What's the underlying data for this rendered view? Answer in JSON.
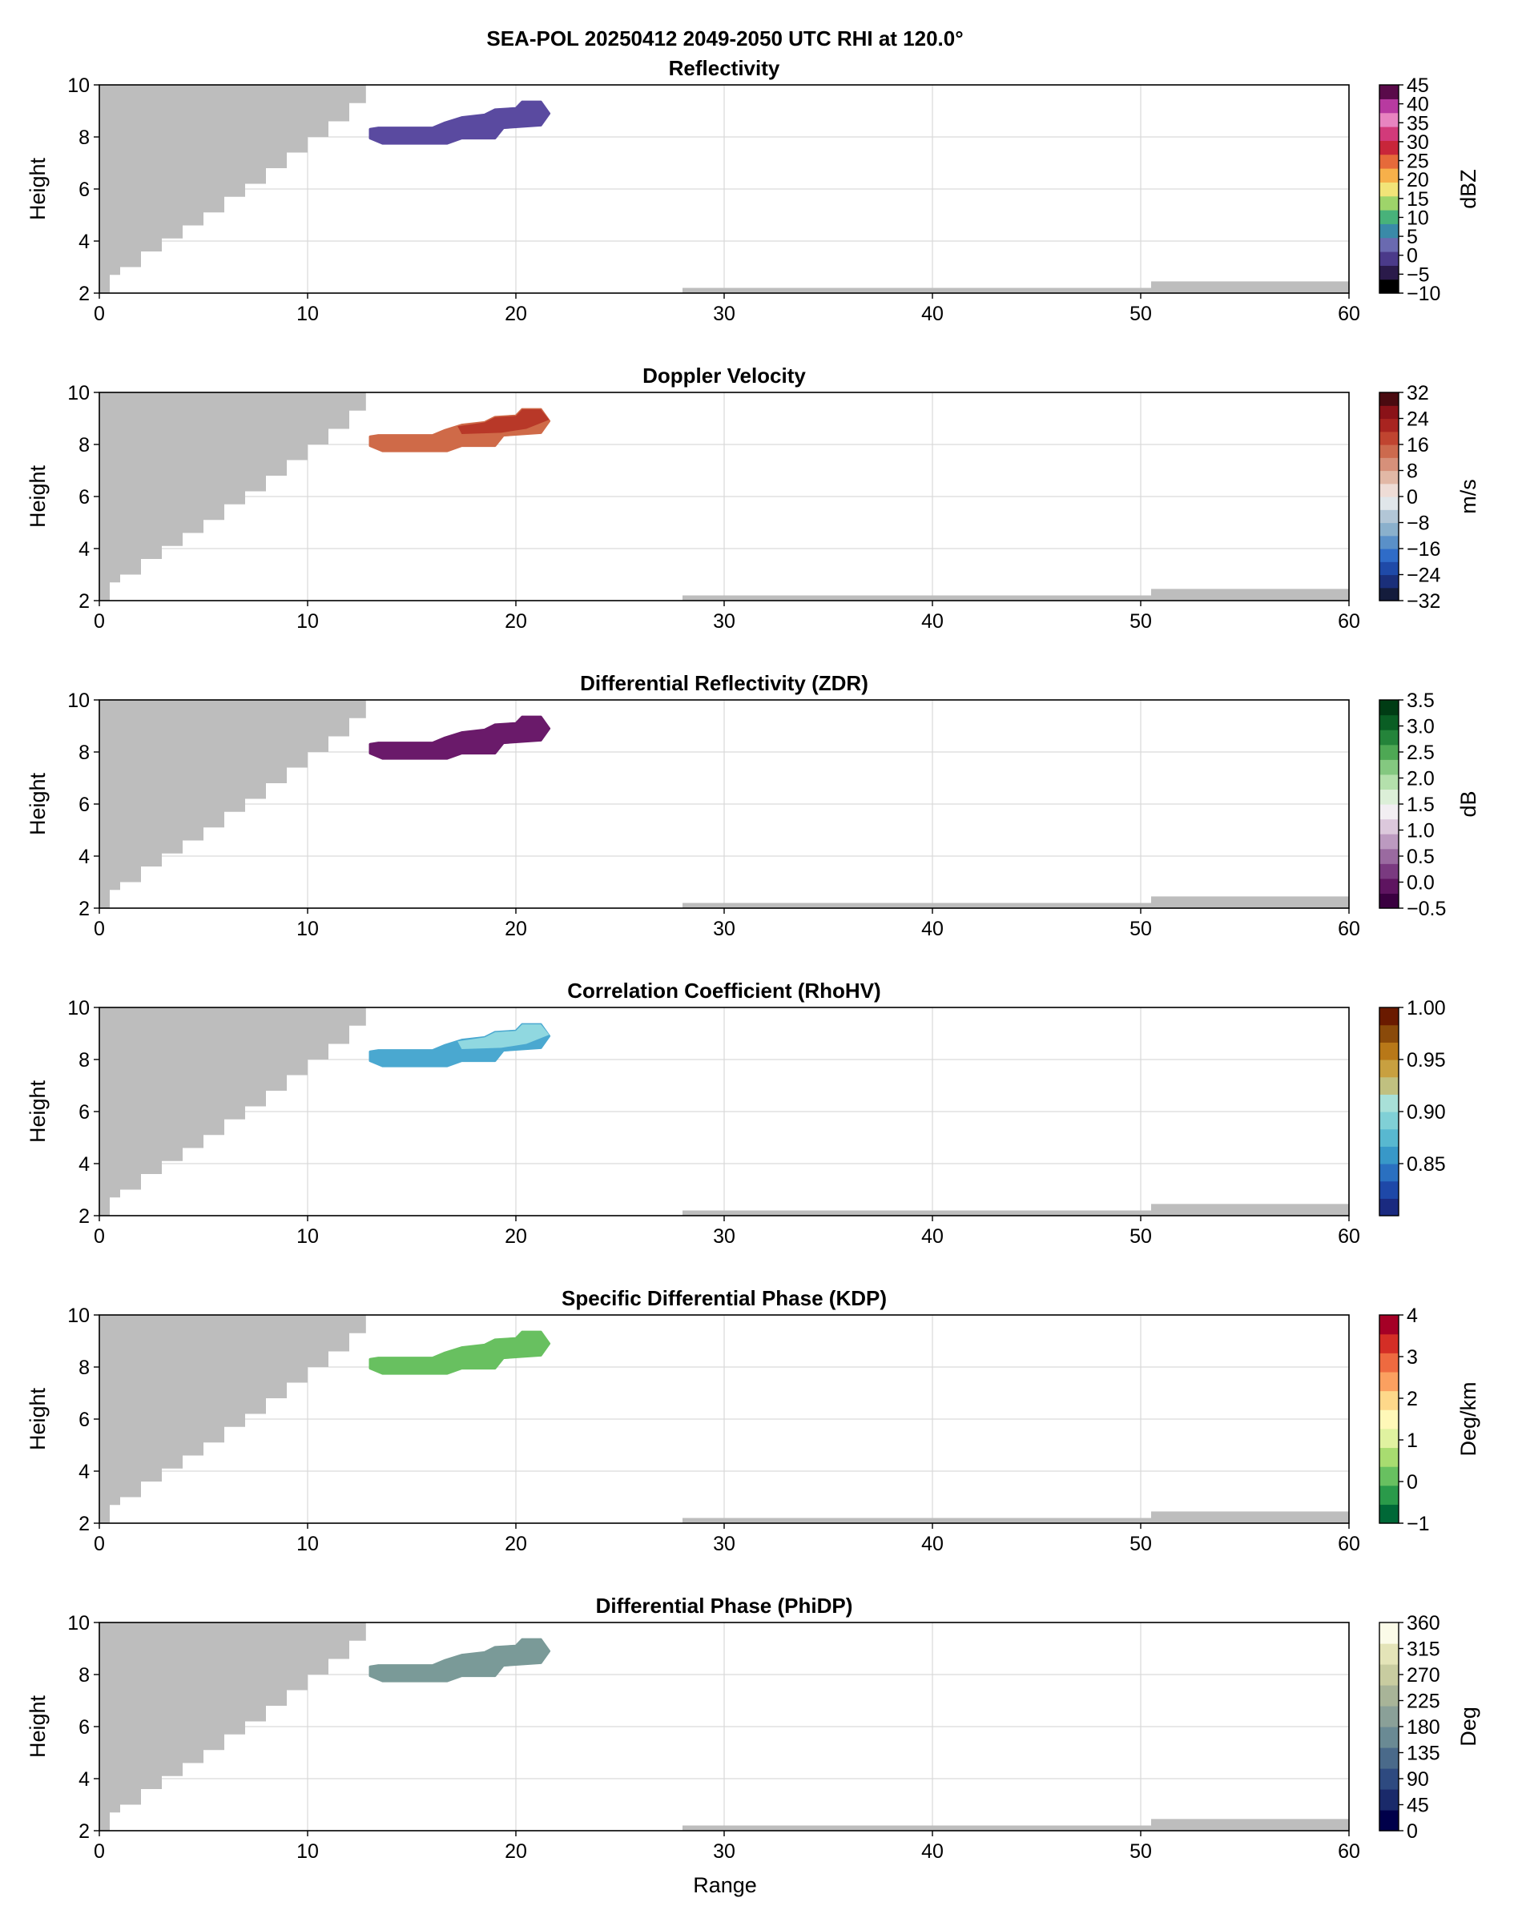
{
  "figure": {
    "suptitle": "SEA-POL 20250412 2049-2050 UTC RHI at 120.0°"
  },
  "chart_data": [
    {
      "type": "heatmap",
      "title": "Reflectivity",
      "xlabel": "",
      "ylabel": "Height",
      "xlim": [
        0,
        60
      ],
      "ylim": [
        2,
        10
      ],
      "xticks": [
        0,
        10,
        20,
        30,
        40,
        50,
        60
      ],
      "yticks": [
        2,
        4,
        6,
        8,
        10
      ],
      "grid": true,
      "fill_color": "#5a4aa0",
      "colorbar": {
        "label": "dBZ",
        "ticks": [
          "45",
          "40",
          "35",
          "30",
          "25",
          "20",
          "15",
          "10",
          "5",
          "0",
          "−5",
          "−10"
        ],
        "range": [
          -10,
          45
        ],
        "colors": [
          "#000000",
          "#2a1a4a",
          "#4b3a8a",
          "#6a6ab0",
          "#3a8aa8",
          "#48b27a",
          "#9ed46a",
          "#f2e478",
          "#f7b04a",
          "#e66a3a",
          "#c8263a",
          "#d23a7a",
          "#e884c0",
          "#b83aa0",
          "#5a0a4a"
        ]
      }
    },
    {
      "type": "heatmap",
      "title": "Doppler Velocity",
      "xlabel": "",
      "ylabel": "Height",
      "xlim": [
        0,
        60
      ],
      "ylim": [
        2,
        10
      ],
      "xticks": [
        0,
        10,
        20,
        30,
        40,
        50,
        60
      ],
      "yticks": [
        2,
        4,
        6,
        8,
        10
      ],
      "grid": true,
      "fill_color": "#cf6a48",
      "fill_color_2": "#b83828",
      "colorbar": {
        "label": "m/s",
        "ticks": [
          "32",
          "24",
          "16",
          "8",
          "0",
          "−8",
          "−16",
          "−24",
          "−32"
        ],
        "range": [
          -32,
          32
        ],
        "colors": [
          "#141c3c",
          "#1a2f7a",
          "#1f4aa8",
          "#2f6cc8",
          "#5a90c8",
          "#8ab0cc",
          "#b2c6d6",
          "#e0e6ea",
          "#eedcd6",
          "#e2b8a6",
          "#d6907a",
          "#cc6a4e",
          "#c04430",
          "#a82420",
          "#8a1218",
          "#4a0a10"
        ]
      }
    },
    {
      "type": "heatmap",
      "title": "Differential Reflectivity (ZDR)",
      "xlabel": "",
      "ylabel": "Height",
      "xlim": [
        0,
        60
      ],
      "ylim": [
        2,
        10
      ],
      "xticks": [
        0,
        10,
        20,
        30,
        40,
        50,
        60
      ],
      "yticks": [
        2,
        4,
        6,
        8,
        10
      ],
      "grid": true,
      "fill_color": "#6a1a6a",
      "colorbar": {
        "label": "dB",
        "ticks": [
          "3.5",
          "3.0",
          "2.5",
          "2.0",
          "1.5",
          "1.0",
          "0.5",
          "0.0",
          "−0.5"
        ],
        "range": [
          -0.5,
          3.5
        ],
        "colors": [
          "#3a0040",
          "#5e1460",
          "#7a3a80",
          "#9a6aa0",
          "#bc9ac0",
          "#dcc8dc",
          "#f2eef2",
          "#dcefd8",
          "#b4e0ac",
          "#84c880",
          "#4ea854",
          "#24843a",
          "#0a5e24",
          "#003c14"
        ]
      }
    },
    {
      "type": "heatmap",
      "title": "Correlation Coefficient (RhoHV)",
      "xlabel": "",
      "ylabel": "Height",
      "xlim": [
        0,
        60
      ],
      "ylim": [
        2,
        10
      ],
      "xticks": [
        0,
        10,
        20,
        30,
        40,
        50,
        60
      ],
      "yticks": [
        2,
        4,
        6,
        8,
        10
      ],
      "grid": true,
      "fill_color": "#4aa8d0",
      "fill_color_2": "#90d8e0",
      "colorbar": {
        "label": "",
        "ticks": [
          "1.00",
          "0.95",
          "0.90",
          "0.85"
        ],
        "range": [
          0.8,
          1.0
        ],
        "colors": [
          "#1a2a80",
          "#1e48a8",
          "#2a70c0",
          "#3898c8",
          "#58b8d0",
          "#80d0d6",
          "#a8e0d8",
          "#c0c080",
          "#c8a040",
          "#b87818",
          "#8a4a0a",
          "#6a1a00"
        ]
      }
    },
    {
      "type": "heatmap",
      "title": "Specific Differential Phase (KDP)",
      "xlabel": "",
      "ylabel": "Height",
      "xlim": [
        0,
        60
      ],
      "ylim": [
        2,
        10
      ],
      "xticks": [
        0,
        10,
        20,
        30,
        40,
        50,
        60
      ],
      "yticks": [
        2,
        4,
        6,
        8,
        10
      ],
      "grid": true,
      "fill_color": "#68c060",
      "colorbar": {
        "label": "Deg/km",
        "ticks": [
          "4",
          "3",
          "2",
          "1",
          "0",
          "−1"
        ],
        "range": [
          -1,
          4
        ],
        "colors": [
          "#006837",
          "#2a9a4a",
          "#68c060",
          "#a8dc70",
          "#e0f2a0",
          "#fff8b8",
          "#fed88a",
          "#fba060",
          "#ee6a40",
          "#d42e26",
          "#a50026"
        ]
      }
    },
    {
      "type": "heatmap",
      "title": "Differential Phase (PhiDP)",
      "xlabel": "Range",
      "ylabel": "Height",
      "xlim": [
        0,
        60
      ],
      "ylim": [
        2,
        10
      ],
      "xticks": [
        0,
        10,
        20,
        30,
        40,
        50,
        60
      ],
      "yticks": [
        2,
        4,
        6,
        8,
        10
      ],
      "grid": true,
      "fill_color": "#7a9a98",
      "colorbar": {
        "label": "Deg",
        "ticks": [
          "360",
          "315",
          "270",
          "225",
          "180",
          "135",
          "90",
          "45",
          "0"
        ],
        "range": [
          0,
          360
        ],
        "colors": [
          "#00004a",
          "#1a2a6a",
          "#2e4a80",
          "#4a6a8a",
          "#6a8a94",
          "#8aa098",
          "#a8b498",
          "#c8cca0",
          "#e4e4b8",
          "#fbfbe8"
        ]
      }
    }
  ],
  "echo": {
    "top": [
      [
        13.0,
        8.3
      ],
      [
        13.4,
        8.35
      ],
      [
        16.0,
        8.35
      ],
      [
        16.6,
        8.55
      ],
      [
        17.4,
        8.75
      ],
      [
        18.5,
        8.85
      ],
      [
        19.0,
        9.05
      ],
      [
        20.0,
        9.1
      ],
      [
        20.3,
        9.35
      ],
      [
        21.2,
        9.35
      ],
      [
        21.6,
        8.9
      ]
    ],
    "bottom": [
      [
        21.6,
        8.9
      ],
      [
        21.2,
        8.45
      ],
      [
        19.4,
        8.35
      ],
      [
        19.0,
        7.95
      ],
      [
        17.4,
        7.95
      ],
      [
        16.7,
        7.75
      ],
      [
        13.6,
        7.75
      ],
      [
        13.0,
        7.95
      ]
    ]
  },
  "blockage": {
    "near": [
      [
        0.0,
        2.0
      ],
      [
        0.5,
        2.7
      ],
      [
        1.0,
        3.0
      ],
      [
        2.0,
        3.6
      ],
      [
        3.0,
        4.1
      ],
      [
        4.0,
        4.6
      ],
      [
        5.0,
        5.1
      ],
      [
        6.0,
        5.7
      ],
      [
        7.0,
        6.2
      ],
      [
        8.0,
        6.8
      ],
      [
        9.0,
        7.4
      ],
      [
        10.0,
        8.0
      ],
      [
        11.0,
        8.6
      ],
      [
        12.0,
        9.3
      ],
      [
        12.8,
        10.0
      ]
    ],
    "far": [
      [
        28.0,
        2.2
      ],
      [
        50.5,
        2.2
      ],
      [
        50.5,
        2.45
      ],
      [
        60.0,
        2.45
      ]
    ]
  }
}
